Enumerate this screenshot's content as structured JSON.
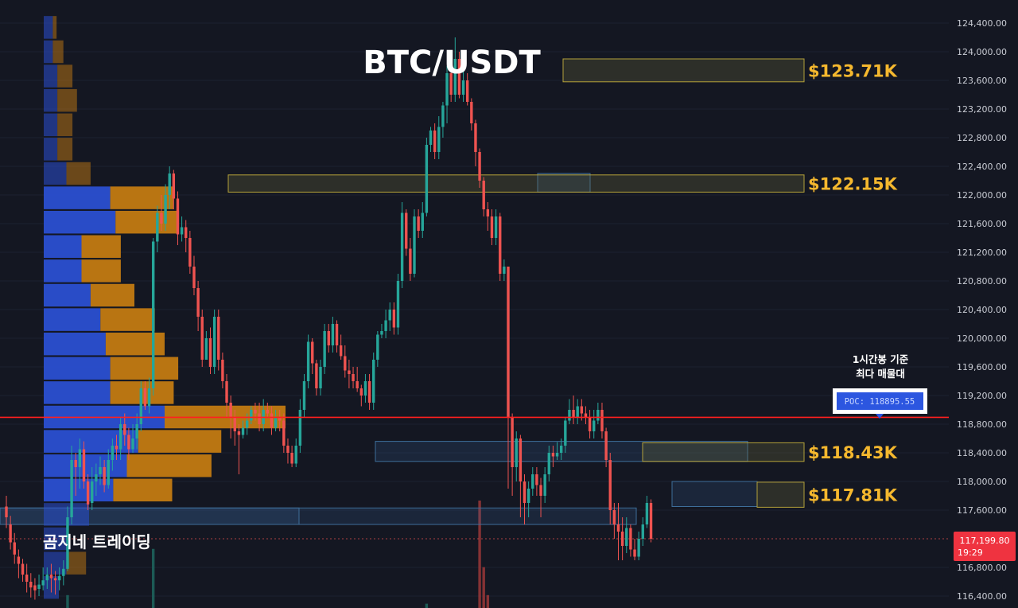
{
  "chart_data": {
    "type": "candlestick",
    "title": "BTC/USDT",
    "watermark": "곰지네 트레이딩",
    "timeframe_note": [
      "1시간봉 기준",
      "최다 매물대"
    ],
    "poc": {
      "label": "POC: 118895.55",
      "price": 118895.55
    },
    "last_price": {
      "value": "117,199.80",
      "countdown": "19:29",
      "price": 117199.8
    },
    "y_axis": {
      "min": 116300,
      "max": 124500,
      "ticks": [
        124400,
        124000,
        123600,
        123200,
        122800,
        122400,
        122000,
        121600,
        121200,
        120800,
        120400,
        120000,
        119600,
        119200,
        118800,
        118400,
        118000,
        117600,
        116800,
        116400
      ],
      "tick_labels": [
        "124,400.00",
        "124,000.00",
        "123,600.00",
        "123,200.00",
        "122,800.00",
        "122,400.00",
        "122,000.00",
        "121,600.00",
        "121,200.00",
        "120,800.00",
        "120,400.00",
        "120,000.00",
        "119,600.00",
        "119,200.00",
        "118,800.00",
        "118,400.00",
        "118,000.00",
        "117,600.00",
        "116,800.00",
        "116,400.00"
      ]
    },
    "zones": [
      {
        "label": "$123.71K",
        "high": 123900,
        "low": 123580,
        "kind": "supply"
      },
      {
        "label": "$122.15K",
        "high": 122280,
        "low": 122040,
        "kind": "supply"
      },
      {
        "label": "$118.43K",
        "high": 118540,
        "low": 118280,
        "kind": "supply"
      },
      {
        "label": "$117.81K",
        "high": 117990,
        "low": 117640,
        "kind": "supply"
      }
    ],
    "volume_profile": {
      "bin_prices": [
        124340,
        124000,
        123660,
        123320,
        122980,
        122640,
        122300,
        121960,
        121620,
        121280,
        120940,
        120600,
        120260,
        119920,
        119580,
        119240,
        118900,
        118560,
        118220,
        117880,
        117540,
        117200,
        116860,
        116520
      ],
      "buy": [
        12,
        12,
        18,
        18,
        18,
        18,
        30,
        88,
        95,
        50,
        50,
        62,
        75,
        82,
        88,
        88,
        160,
        125,
        110,
        92,
        60,
        30,
        30,
        20
      ],
      "sell": [
        5,
        14,
        20,
        26,
        20,
        20,
        32,
        84,
        84,
        52,
        52,
        58,
        72,
        78,
        90,
        84,
        160,
        110,
        112,
        78,
        0,
        0,
        26,
        0
      ]
    },
    "candles": [
      [
        117650,
        117500,
        117800,
        117350
      ],
      [
        117400,
        117150,
        117520,
        117050
      ],
      [
        117150,
        116980,
        117280,
        116850
      ],
      [
        116950,
        116850,
        117050,
        116650
      ],
      [
        116850,
        116700,
        116920,
        116600
      ],
      [
        116700,
        116600,
        116850,
        116450
      ],
      [
        116600,
        116520,
        116720,
        116380
      ],
      [
        116550,
        116480,
        116650,
        116350
      ],
      [
        116500,
        116560,
        116700,
        116400
      ],
      [
        116550,
        116620,
        116800,
        116480
      ],
      [
        116620,
        116700,
        116800,
        116500
      ],
      [
        116700,
        116650,
        116850,
        116450
      ],
      [
        116650,
        116620,
        116750,
        116420
      ],
      [
        116620,
        116680,
        116800,
        116480
      ],
      [
        116680,
        116780,
        116900,
        116550
      ],
      [
        116780,
        117500,
        117650,
        116750
      ],
      [
        117500,
        118300,
        118500,
        117400
      ],
      [
        118300,
        118200,
        118400,
        117800
      ],
      [
        118200,
        118450,
        118600,
        117900
      ],
      [
        118450,
        118000,
        118560,
        117900
      ],
      [
        118000,
        117680,
        118100,
        117600
      ],
      [
        117700,
        118000,
        118200,
        117600
      ],
      [
        118000,
        118100,
        118250,
        117800
      ],
      [
        118100,
        118200,
        118350,
        117950
      ],
      [
        118200,
        117950,
        118300,
        117850
      ],
      [
        117950,
        118300,
        118450,
        117900
      ],
      [
        118300,
        118500,
        118600,
        118150
      ],
      [
        118500,
        118450,
        118650,
        118300
      ],
      [
        118450,
        118800,
        118900,
        118300
      ],
      [
        118800,
        118650,
        118950,
        118500
      ],
      [
        118650,
        118450,
        118750,
        118300
      ],
      [
        118450,
        118600,
        118800,
        118400
      ],
      [
        118600,
        118800,
        118950,
        118450
      ],
      [
        118800,
        119300,
        119400,
        118700
      ],
      [
        119300,
        119050,
        119400,
        119000
      ],
      [
        119050,
        119300,
        119450,
        118950
      ],
      [
        119300,
        121350,
        121400,
        119200
      ],
      [
        121350,
        121750,
        121850,
        121200
      ],
      [
        121750,
        121600,
        122000,
        121500
      ],
      [
        121600,
        122000,
        122150,
        121500
      ],
      [
        122000,
        122300,
        122400,
        121800
      ],
      [
        122300,
        121950,
        122350,
        121800
      ],
      [
        121950,
        121450,
        122050,
        121300
      ],
      [
        121450,
        121550,
        121700,
        121350
      ],
      [
        121550,
        121400,
        121650,
        121200
      ],
      [
        121400,
        121000,
        121500,
        120900
      ],
      [
        121000,
        120700,
        121150,
        120600
      ],
      [
        120700,
        120300,
        120800,
        120100
      ],
      [
        120300,
        119700,
        120400,
        119600
      ],
      [
        119700,
        120000,
        120100,
        119700
      ],
      [
        120000,
        119600,
        120150,
        119500
      ],
      [
        119600,
        120300,
        120400,
        119500
      ],
      [
        120300,
        119700,
        120400,
        119550
      ],
      [
        119700,
        119400,
        119800,
        119300
      ],
      [
        119400,
        119100,
        119500,
        118900
      ],
      [
        119100,
        118900,
        119200,
        118600
      ],
      [
        118900,
        118700,
        119000,
        118500
      ],
      [
        118700,
        118650,
        118800,
        118100
      ],
      [
        118650,
        118750,
        118850,
        118600
      ],
      [
        118750,
        118850,
        118950,
        118650
      ],
      [
        118850,
        119000,
        119050,
        118800
      ],
      [
        119000,
        118950,
        119100,
        118850
      ],
      [
        118950,
        118800,
        119100,
        118700
      ],
      [
        118800,
        119000,
        119150,
        118700
      ],
      [
        119000,
        118950,
        119100,
        118900
      ],
      [
        118950,
        118750,
        119050,
        118650
      ],
      [
        118750,
        118900,
        119000,
        118700
      ],
      [
        118900,
        118850,
        119000,
        118700
      ],
      [
        118850,
        118500,
        118950,
        118400
      ],
      [
        118500,
        118400,
        118600,
        118250
      ],
      [
        118400,
        118250,
        118500,
        118200
      ],
      [
        118250,
        118500,
        118600,
        118200
      ],
      [
        118500,
        119000,
        119150,
        118400
      ],
      [
        119000,
        119400,
        119500,
        118900
      ],
      [
        119400,
        119950,
        120050,
        119300
      ],
      [
        119950,
        119650,
        120000,
        119500
      ],
      [
        119650,
        119300,
        119700,
        119200
      ],
      [
        119300,
        119600,
        119700,
        119200
      ],
      [
        119600,
        120100,
        120200,
        119500
      ],
      [
        120100,
        119900,
        120200,
        119800
      ],
      [
        119900,
        120200,
        120300,
        119800
      ],
      [
        120200,
        119900,
        120250,
        119800
      ],
      [
        119900,
        119750,
        120050,
        119700
      ],
      [
        119750,
        119550,
        119900,
        119450
      ],
      [
        119550,
        119500,
        119700,
        119300
      ],
      [
        119500,
        119400,
        119600,
        119300
      ],
      [
        119400,
        119300,
        119600,
        119250
      ],
      [
        119300,
        119200,
        119350,
        119050
      ],
      [
        119200,
        119400,
        119500,
        119100
      ],
      [
        119400,
        119100,
        119500,
        119000
      ],
      [
        119100,
        119700,
        119800,
        119000
      ],
      [
        119700,
        120050,
        120100,
        119600
      ],
      [
        120050,
        120100,
        120200,
        120000
      ],
      [
        120100,
        120250,
        120400,
        120000
      ],
      [
        120250,
        120400,
        120500,
        120100
      ],
      [
        120400,
        120150,
        120500,
        120050
      ],
      [
        120150,
        120800,
        120900,
        120050
      ],
      [
        120800,
        121750,
        121900,
        120700
      ],
      [
        121750,
        121250,
        121800,
        121150
      ],
      [
        121250,
        120900,
        121400,
        120800
      ],
      [
        120900,
        121700,
        121800,
        120850
      ],
      [
        121700,
        121500,
        121800,
        121400
      ],
      [
        121500,
        121750,
        121900,
        121400
      ],
      [
        121750,
        122700,
        122800,
        121700
      ],
      [
        122700,
        122900,
        122950,
        122600
      ],
      [
        122900,
        122600,
        123000,
        122500
      ],
      [
        122600,
        122950,
        123100,
        122500
      ],
      [
        122950,
        123250,
        123300,
        122800
      ],
      [
        123250,
        123700,
        123800,
        123000
      ],
      [
        123700,
        123400,
        123900,
        123300
      ],
      [
        123400,
        123900,
        124200,
        123300
      ],
      [
        123900,
        123400,
        124000,
        123350
      ],
      [
        123400,
        123600,
        123750,
        123300
      ],
      [
        123600,
        123300,
        123700,
        123250
      ],
      [
        123300,
        123000,
        123350,
        122900
      ],
      [
        123000,
        122600,
        123050,
        122400
      ],
      [
        122600,
        122200,
        122650,
        122100
      ],
      [
        122200,
        121800,
        122250,
        121700
      ],
      [
        121800,
        121700,
        121900,
        121500
      ],
      [
        121700,
        121400,
        121800,
        121300
      ],
      [
        121400,
        121700,
        121800,
        121300
      ],
      [
        121700,
        120900,
        121750,
        120800
      ],
      [
        120900,
        121000,
        121100,
        120800
      ],
      [
        121000,
        118900,
        121000,
        117900
      ],
      [
        118900,
        118200,
        118950,
        117800
      ],
      [
        118200,
        118600,
        118700,
        118000
      ],
      [
        118600,
        118000,
        118650,
        117500
      ],
      [
        118000,
        117700,
        118100,
        117400
      ],
      [
        117700,
        117900,
        118000,
        117500
      ],
      [
        117900,
        118100,
        118200,
        117800
      ],
      [
        118100,
        117950,
        118200,
        117800
      ],
      [
        117950,
        117800,
        118050,
        117500
      ],
      [
        117800,
        118100,
        118200,
        117700
      ],
      [
        118100,
        118400,
        118500,
        118000
      ],
      [
        118400,
        118350,
        118500,
        118200
      ],
      [
        118350,
        118400,
        118550,
        118300
      ],
      [
        118400,
        118500,
        118600,
        118300
      ],
      [
        118500,
        118850,
        118900,
        118400
      ],
      [
        118850,
        119000,
        119150,
        118800
      ],
      [
        119000,
        118900,
        119200,
        118800
      ],
      [
        118900,
        119050,
        119150,
        118800
      ],
      [
        119050,
        118950,
        119150,
        118850
      ],
      [
        118950,
        118900,
        119050,
        118800
      ],
      [
        118900,
        118700,
        119000,
        118600
      ],
      [
        118700,
        118850,
        119000,
        118600
      ],
      [
        118850,
        119000,
        119100,
        118800
      ],
      [
        119000,
        118700,
        119100,
        118600
      ],
      [
        118700,
        118300,
        118750,
        118200
      ],
      [
        118300,
        117600,
        118400,
        117400
      ],
      [
        117600,
        117400,
        117700,
        117200
      ],
      [
        117400,
        117300,
        117700,
        116900
      ],
      [
        117300,
        117100,
        117500,
        116900
      ],
      [
        117100,
        117350,
        117500,
        117000
      ],
      [
        117350,
        117050,
        117400,
        116950
      ],
      [
        117050,
        116950,
        117200,
        116900
      ],
      [
        116950,
        117200,
        117300,
        116900
      ],
      [
        117200,
        117400,
        117500,
        117100
      ],
      [
        117400,
        117700,
        117800,
        117350
      ],
      [
        117700,
        117200,
        117750,
        117150
      ]
    ],
    "volume_bars": [
      {
        "i": 15,
        "v": 0.12,
        "dir": "up"
      },
      {
        "i": 36,
        "v": 0.55,
        "dir": "up"
      },
      {
        "i": 103,
        "v": 0.04,
        "dir": "up"
      },
      {
        "i": 116,
        "v": 1.0,
        "dir": "down"
      },
      {
        "i": 117,
        "v": 0.38,
        "dir": "down"
      },
      {
        "i": 118,
        "v": 0.12,
        "dir": "down"
      }
    ],
    "colors": {
      "background": "#141722",
      "up": "#26a69a",
      "down": "#ef5350",
      "poc_line": "#ff1f1f",
      "zone_text": "#f5b82e",
      "profile_buy": "#2a4fd1",
      "profile_sell": "#c27a12",
      "grid": "#1d2130"
    }
  }
}
